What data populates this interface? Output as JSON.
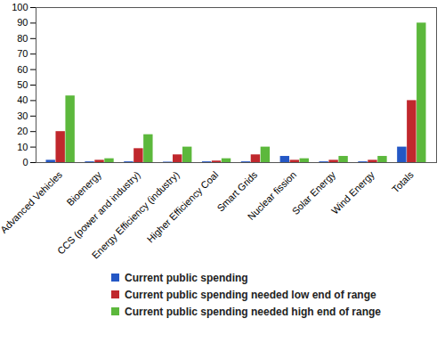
{
  "chart_data": {
    "type": "bar",
    "categories": [
      "Advanced Vehicles",
      "Bioenergy",
      "CCS (power and industry)",
      "Energy Efficiency (industry)",
      "Higher Efficiency Coal",
      "Smart Grids",
      "Nuclear fission",
      "Solar Energy",
      "Wind Energy",
      "Totals"
    ],
    "series": [
      {
        "name": "Current public spending",
        "color": "#2457c5",
        "values": [
          1.5,
          0.5,
          0.5,
          0.3,
          0.5,
          0.5,
          4,
          0.5,
          0.5,
          10
        ]
      },
      {
        "name": "Current public spending needed low end of range",
        "color": "#c0282d",
        "values": [
          20,
          1.5,
          9,
          5,
          1,
          5,
          1.5,
          1.5,
          1.5,
          40
        ]
      },
      {
        "name": "Current public spending needed high end of range",
        "color": "#5cb83c",
        "values": [
          43,
          2.5,
          18,
          10,
          2.5,
          10,
          2.5,
          4,
          4,
          90
        ]
      }
    ],
    "ylim": [
      0,
      100
    ],
    "yticks": [
      0,
      10,
      20,
      30,
      40,
      50,
      60,
      70,
      80,
      90,
      100
    ],
    "legend": "bottom"
  }
}
